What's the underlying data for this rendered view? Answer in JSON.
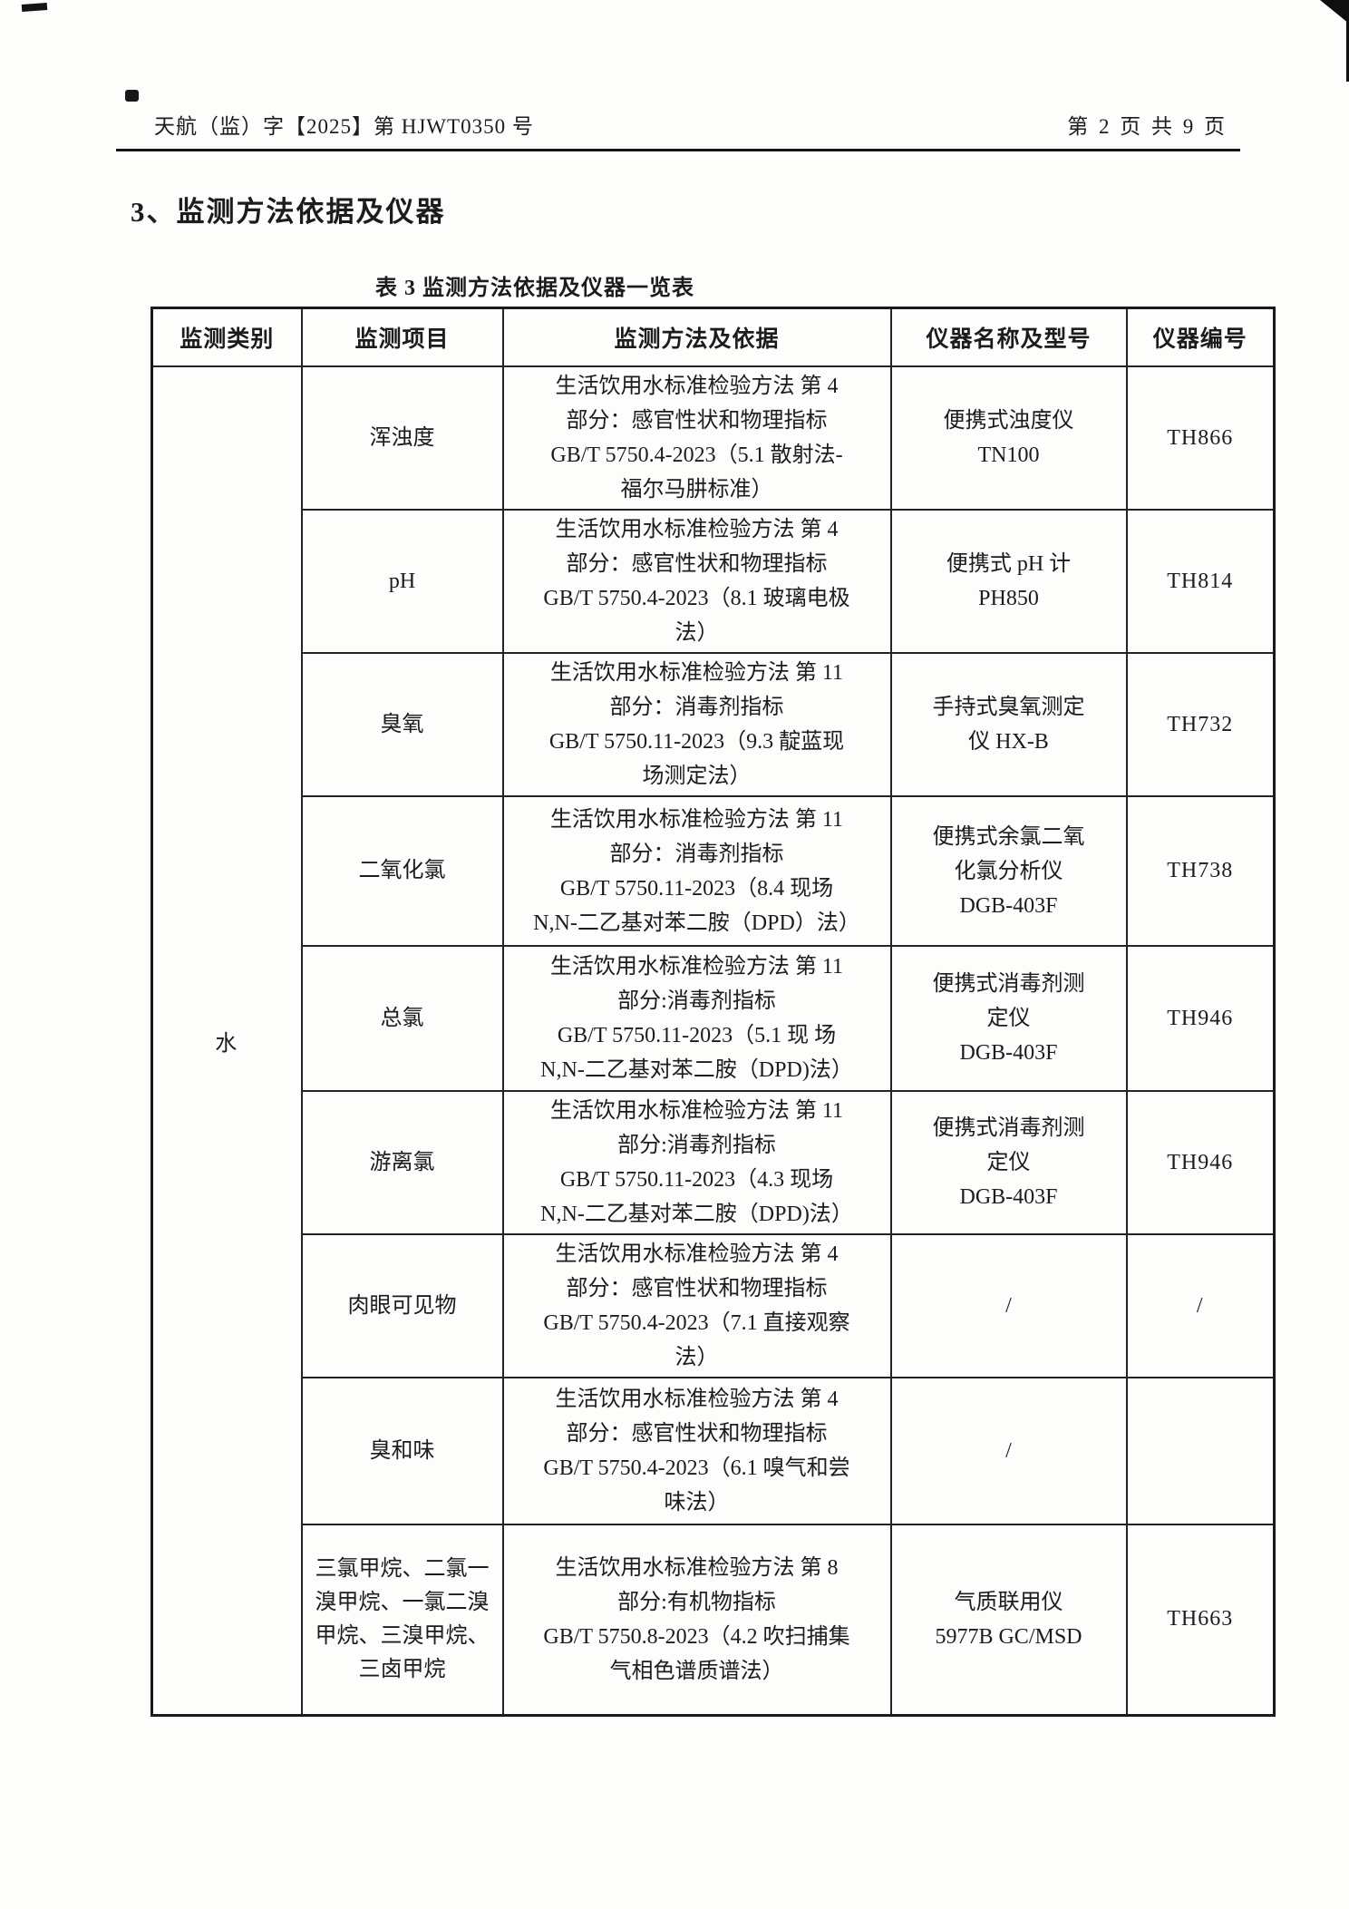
{
  "header": {
    "doc_number": "天航（监）字【2025】第 HJWT0350 号",
    "page_indicator": "第 2 页 共 9 页"
  },
  "section_title": "3、监测方法依据及仪器",
  "table": {
    "caption": "表 3 监测方法依据及仪器一览表",
    "columns": [
      "监测类别",
      "监测项目",
      "监测方法及依据",
      "仪器名称及型号",
      "仪器编号"
    ],
    "category": "水",
    "rows": [
      {
        "item": "浑浊度",
        "method_lines": [
          "生活饮用水标准检验方法 第 4",
          "部分：感官性状和物理指标",
          "GB/T 5750.4-2023（5.1 散射法-",
          "福尔马肼标准）"
        ],
        "instrument_lines": [
          "便携式浊度仪",
          "TN100"
        ],
        "code": "TH866"
      },
      {
        "item": "pH",
        "method_lines": [
          "生活饮用水标准检验方法 第 4",
          "部分：感官性状和物理指标",
          "GB/T 5750.4-2023（8.1 玻璃电极",
          "法）"
        ],
        "instrument_lines": [
          "便携式 pH 计",
          "PH850"
        ],
        "code": "TH814"
      },
      {
        "item": "臭氧",
        "method_lines": [
          "生活饮用水标准检验方法 第 11",
          "部分：消毒剂指标",
          "GB/T 5750.11-2023（9.3 靛蓝现",
          "场测定法）"
        ],
        "instrument_lines": [
          "手持式臭氧测定",
          "仪 HX-B"
        ],
        "code": "TH732"
      },
      {
        "item": "二氧化氯",
        "method_lines": [
          "生活饮用水标准检验方法 第 11",
          "部分：消毒剂指标",
          "GB/T 5750.11-2023（8.4 现场",
          "N,N-二乙基对苯二胺（DPD）法）"
        ],
        "instrument_lines": [
          "便携式余氯二氧",
          "化氯分析仪",
          "DGB-403F"
        ],
        "code": "TH738"
      },
      {
        "item": "总氯",
        "method_lines": [
          "生活饮用水标准检验方法 第 11",
          "部分:消毒剂指标",
          "GB/T 5750.11-2023（5.1 现 场",
          "N,N-二乙基对苯二胺（DPD)法）"
        ],
        "instrument_lines": [
          "便携式消毒剂测",
          "定仪",
          "DGB-403F"
        ],
        "code": "TH946"
      },
      {
        "item": "游离氯",
        "method_lines": [
          "生活饮用水标准检验方法 第 11",
          "部分:消毒剂指标",
          "GB/T 5750.11-2023（4.3 现场",
          "N,N-二乙基对苯二胺（DPD)法）"
        ],
        "instrument_lines": [
          "便携式消毒剂测",
          "定仪",
          "DGB-403F"
        ],
        "code": "TH946"
      },
      {
        "item": "肉眼可见物",
        "method_lines": [
          "生活饮用水标准检验方法 第 4",
          "部分：感官性状和物理指标",
          "GB/T 5750.4-2023（7.1 直接观察",
          "法）"
        ],
        "instrument_lines": [
          "/"
        ],
        "code": "/"
      },
      {
        "item": "臭和味",
        "method_lines": [
          "生活饮用水标准检验方法 第 4",
          "部分：感官性状和物理指标",
          "GB/T 5750.4-2023（6.1 嗅气和尝",
          "味法）"
        ],
        "instrument_lines": [
          "/"
        ],
        "code": ""
      },
      {
        "item": "三氯甲烷、二氯一溴甲烷、一氯二溴甲烷、三溴甲烷、三卤甲烷",
        "method_lines": [
          "生活饮用水标准检验方法 第 8",
          "部分:有机物指标",
          "GB/T 5750.8-2023（4.2 吹扫捕集",
          "气相色谱质谱法）"
        ],
        "instrument_lines": [
          "气质联用仪",
          "5977B GC/MSD"
        ],
        "code": "TH663"
      }
    ]
  }
}
